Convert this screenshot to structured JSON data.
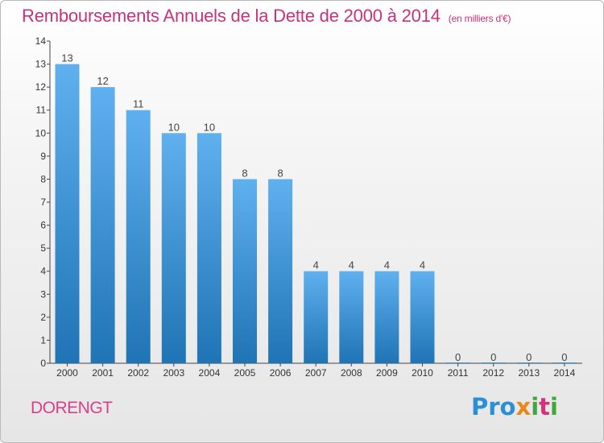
{
  "title": "Remboursements Annuels de la Dette de 2000 à 2014",
  "unit": "(en milliers d'€)",
  "commune": "DORENGT",
  "logo": {
    "p1": "Pro",
    "p2": "x",
    "p3": "i",
    "p4": "t",
    "p5": "i"
  },
  "colors": {
    "bar_top": "#5fb0ee",
    "bar_bottom": "#1f74b5",
    "title": "#c8317c",
    "commune": "#d9408b"
  },
  "chart_data": {
    "type": "bar",
    "categories": [
      "2000",
      "2001",
      "2002",
      "2003",
      "2004",
      "2005",
      "2006",
      "2007",
      "2008",
      "2009",
      "2010",
      "2011",
      "2012",
      "2013",
      "2014"
    ],
    "values": [
      13,
      12,
      11,
      10,
      10,
      8,
      8,
      4,
      4,
      4,
      4,
      0,
      0,
      0,
      0
    ],
    "value_labels": [
      "13",
      "12",
      "11",
      "10",
      "10",
      "8",
      "8",
      "4",
      "4",
      "4",
      "4",
      "0",
      "0",
      "0",
      "0"
    ],
    "y_ticks": [
      0,
      1,
      2,
      3,
      4,
      5,
      6,
      7,
      8,
      9,
      10,
      11,
      12,
      13,
      14
    ],
    "ylim": [
      0,
      14
    ],
    "grid": false
  }
}
